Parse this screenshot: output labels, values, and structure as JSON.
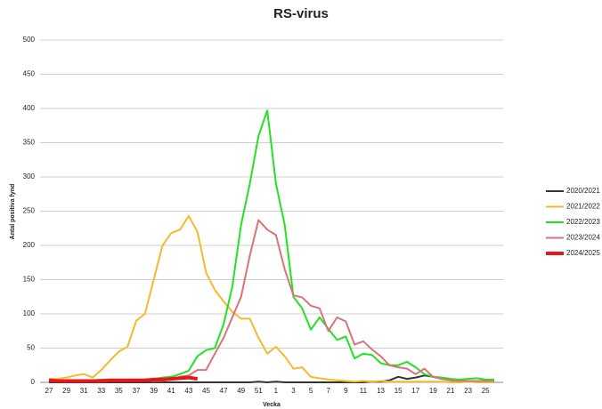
{
  "chart_data": {
    "type": "line",
    "title": "RS-virus",
    "x_label": "Vecka",
    "y_label": "Antal positiva fynd",
    "categories": [
      "27",
      null,
      "29",
      null,
      "31",
      null,
      "33",
      null,
      "35",
      null,
      "37",
      null,
      "39",
      null,
      "41",
      null,
      "43",
      null,
      "45",
      null,
      "47",
      null,
      "49",
      null,
      "51",
      null,
      "1",
      null,
      "3",
      null,
      "5",
      null,
      "7",
      null,
      "9",
      null,
      "11",
      null,
      "13",
      null,
      "15",
      null,
      "17",
      null,
      "19",
      null,
      "21",
      null,
      "23",
      null,
      "25",
      null
    ],
    "ylim": [
      0,
      500
    ],
    "yticks": [
      0,
      50,
      100,
      150,
      200,
      250,
      300,
      350,
      400,
      450,
      500
    ],
    "grid": true,
    "legend": "right",
    "series": [
      {
        "name": "2020/2021",
        "color": "#333333",
        "values": [
          0,
          0,
          0,
          0,
          0,
          0,
          0,
          0,
          0,
          0,
          0,
          0,
          0,
          0,
          0,
          0,
          0,
          0,
          0,
          0,
          0,
          0,
          0,
          0,
          1,
          0,
          1,
          0,
          0,
          0,
          0,
          0,
          0,
          0,
          0,
          0,
          0,
          1,
          1,
          3,
          8,
          5,
          7,
          10,
          8,
          5,
          3,
          2,
          2,
          2,
          2,
          2
        ]
      },
      {
        "name": "2021/2022",
        "color": "#f5b92e",
        "values": [
          5,
          5,
          7,
          10,
          12,
          7,
          18,
          32,
          45,
          52,
          90,
          100,
          150,
          200,
          218,
          223,
          243,
          220,
          160,
          135,
          118,
          103,
          93,
          93,
          65,
          42,
          52,
          38,
          20,
          22,
          8,
          6,
          4,
          3,
          2,
          1,
          2,
          1,
          2,
          1,
          1,
          1,
          1,
          1,
          1,
          1,
          0,
          0,
          1,
          0,
          0,
          0
        ]
      },
      {
        "name": "2022/2023",
        "color": "#22e322",
        "values": [
          2,
          3,
          3,
          3,
          3,
          3,
          4,
          4,
          3,
          4,
          4,
          4,
          5,
          7,
          8,
          12,
          17,
          38,
          47,
          50,
          85,
          140,
          230,
          290,
          360,
          397,
          290,
          230,
          125,
          108,
          77,
          95,
          78,
          62,
          67,
          35,
          42,
          40,
          28,
          25,
          25,
          30,
          22,
          12,
          8,
          7,
          5,
          4,
          5,
          6,
          4,
          4
        ]
      },
      {
        "name": "2023/2024",
        "color": "#d9737a",
        "values": [
          2,
          2,
          2,
          2,
          2,
          2,
          2,
          2,
          2,
          2,
          2,
          2,
          2,
          2,
          5,
          8,
          10,
          18,
          18,
          42,
          65,
          95,
          125,
          185,
          237,
          223,
          215,
          165,
          127,
          124,
          112,
          108,
          75,
          95,
          89,
          55,
          60,
          48,
          38,
          25,
          22,
          20,
          12,
          20,
          8,
          5,
          3,
          2,
          2,
          2,
          2,
          2
        ]
      },
      {
        "name": "2024/2025",
        "color": "#e8151b",
        "values": [
          3,
          2,
          2,
          2,
          2,
          2,
          2,
          3,
          3,
          3,
          3,
          3,
          4,
          4,
          5,
          6,
          7,
          5,
          null,
          null,
          null,
          null,
          null,
          null,
          null,
          null,
          null,
          null,
          null,
          null,
          null,
          null,
          null,
          null,
          null,
          null,
          null,
          null,
          null,
          null,
          null,
          null,
          null,
          null,
          null,
          null,
          null,
          null,
          null,
          null,
          null,
          null
        ]
      }
    ]
  }
}
